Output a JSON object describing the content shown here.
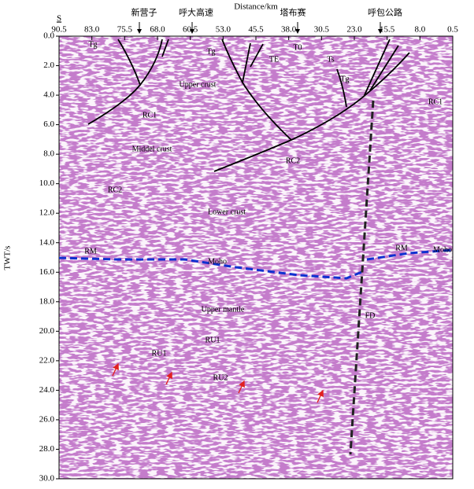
{
  "chart_data": {
    "type": "seismic",
    "title": "Distance/km",
    "y_label": "TWT/s",
    "direction_label": "S",
    "xlim": [
      90.5,
      0.5
    ],
    "xticks": [
      90.5,
      {
        "value": 83,
        "label": "83.0"
      },
      75.5,
      {
        "value": 68,
        "label": "68.0"
      },
      60.5,
      {
        "value": 53,
        "label": "53.0"
      },
      45.5,
      {
        "value": 38,
        "label": "38.0"
      },
      30.5,
      {
        "value": 23,
        "label": "23.0"
      },
      15.5,
      {
        "value": 8,
        "label": "8.0"
      },
      0.5
    ],
    "ylim": [
      0,
      30
    ],
    "yticks": [
      {
        "value": 0,
        "label": "0.0"
      },
      {
        "value": 2,
        "label": "2.0"
      },
      {
        "value": 4,
        "label": "4.0"
      },
      {
        "value": 6,
        "label": "6.0"
      },
      {
        "value": 8,
        "label": "8.0"
      },
      {
        "value": 10,
        "label": "10.0"
      },
      {
        "value": 12,
        "label": "12.0"
      },
      {
        "value": 14,
        "label": "14.0"
      },
      {
        "value": 16,
        "label": "16.0"
      },
      {
        "value": 18,
        "label": "18.0"
      },
      {
        "value": 20,
        "label": "20.0"
      },
      {
        "value": 22,
        "label": "22.0"
      },
      {
        "value": 24,
        "label": "24.0"
      },
      {
        "value": 26,
        "label": "26.0"
      },
      {
        "value": 28,
        "label": "28.0"
      },
      {
        "value": 30,
        "label": "30.0"
      }
    ],
    "places": [
      "新营子",
      "呼大高速",
      "塔布赛",
      "呼包公路"
    ],
    "annotations": [
      "Tg",
      "Tg",
      "Tg",
      "T0",
      "TE",
      "Ts",
      "Upper crust",
      "RC1",
      "RC1",
      "Middel crust",
      "RC2",
      "RC2",
      "Lower crust",
      "RM",
      "RM",
      "Moho",
      "Moho",
      "Upper mantle",
      "RU1",
      "RU1",
      "RU2",
      "FD"
    ]
  }
}
